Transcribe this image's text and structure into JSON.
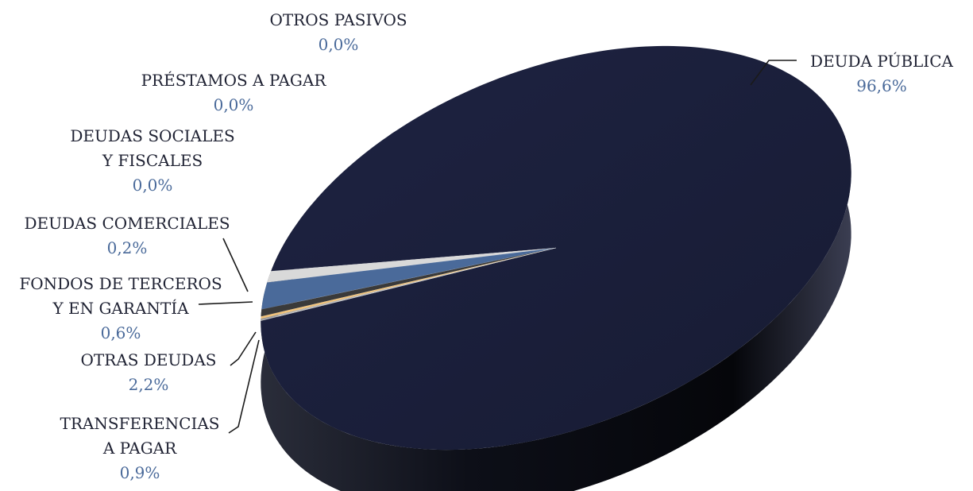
{
  "chart_data": {
    "type": "pie",
    "title": "",
    "value_color": "#4a6a9a",
    "slices": [
      {
        "name": "DEUDA PÚBLICA",
        "lines": [
          "DEUDA PÚBLICA"
        ],
        "value": 96.6,
        "label": "96,6%",
        "color": "#1b1f3b"
      },
      {
        "name": "TRANSFERENCIAS A PAGAR",
        "lines": [
          "TRANSFERENCIAS",
          "A PAGAR"
        ],
        "value": 0.9,
        "label": "0,9%",
        "color": "#d9d9d9"
      },
      {
        "name": "OTRAS DEUDAS",
        "lines": [
          "OTRAS DEUDAS"
        ],
        "value": 2.2,
        "label": "2,2%",
        "color": "#4a6a9a"
      },
      {
        "name": "FONDOS DE TERCEROS Y EN GARANTÍA",
        "lines": [
          "FONDOS DE TERCEROS",
          "Y EN GARANTÍA"
        ],
        "value": 0.6,
        "label": "0,6%",
        "color": "#3a3a3a"
      },
      {
        "name": "DEUDAS COMERCIALES",
        "lines": [
          "DEUDAS COMERCIALES"
        ],
        "value": 0.2,
        "label": "0,2%",
        "color": "#f0c27a"
      },
      {
        "name": "DEUDAS SOCIALES Y FISCALES",
        "lines": [
          "DEUDAS SOCIALES",
          "Y FISCALES"
        ],
        "value": 0.0,
        "label": "0,0%",
        "color": "#8c8c8c"
      },
      {
        "name": "PRÉSTAMOS A PAGAR",
        "lines": [
          "PRÉSTAMOS A PAGAR"
        ],
        "value": 0.0,
        "label": "0,0%",
        "color": "#a0a0a0"
      },
      {
        "name": "OTROS PASIVOS",
        "lines": [
          "OTROS PASIVOS"
        ],
        "value": 0.0,
        "label": "0,0%",
        "color": "#c0c0c0"
      }
    ]
  }
}
